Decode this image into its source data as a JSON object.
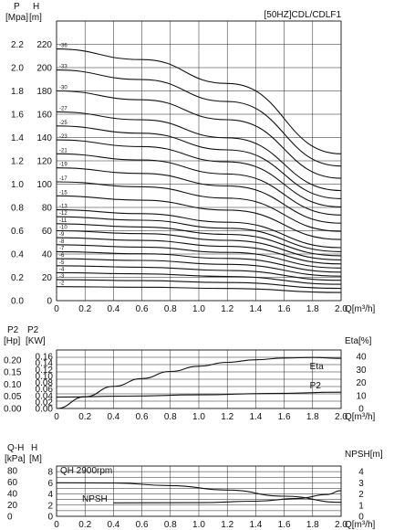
{
  "page_title": "[50HZ]CDL/CDLF1",
  "chart_data": [
    {
      "type": "line",
      "title": "[50HZ]CDL/CDLF1",
      "xlabel": "Q[m³/h]",
      "x_ticks": [
        "0",
        "0.2",
        "0.4",
        "0.6",
        "0.8",
        "1.0",
        "1.2",
        "1.4",
        "1.6",
        "1.8",
        "2.0"
      ],
      "xlim": [
        0,
        2
      ],
      "left_header": [
        "P",
        "[Mpa]"
      ],
      "right_header": [
        "H",
        "[m]"
      ],
      "ylabel": "H [m]",
      "ylim": [
        0,
        240
      ],
      "y_ticks": [
        "0",
        "20",
        "40",
        "60",
        "80",
        "100",
        "120",
        "140",
        "160",
        "180",
        "200",
        "220"
      ],
      "y2_ticks": [
        "0.0",
        "0.2",
        "0.4",
        "0.6",
        "0.8",
        "1.0",
        "1.2",
        "1.4",
        "1.6",
        "1.8",
        "2.0",
        "2.2"
      ],
      "series": [
        {
          "name": "-2",
          "x": [
            0,
            0.6,
            1.2,
            2.0
          ],
          "y": [
            12,
            11.5,
            10.4,
            7
          ]
        },
        {
          "name": "-3",
          "x": [
            0,
            0.6,
            1.2,
            2.0
          ],
          "y": [
            18,
            17.2,
            15.5,
            10.5
          ]
        },
        {
          "name": "-4",
          "x": [
            0,
            0.6,
            1.2,
            2.0
          ],
          "y": [
            24,
            23,
            20.7,
            14
          ]
        },
        {
          "name": "-5",
          "x": [
            0,
            0.6,
            1.2,
            2.0
          ],
          "y": [
            30,
            28.7,
            25.9,
            17.5
          ]
        },
        {
          "name": "-6",
          "x": [
            0,
            0.6,
            1.2,
            2.0
          ],
          "y": [
            36,
            34.5,
            31.1,
            21
          ]
        },
        {
          "name": "-7",
          "x": [
            0,
            0.6,
            1.2,
            2.0
          ],
          "y": [
            42,
            40.2,
            36.2,
            24.5
          ]
        },
        {
          "name": "-8",
          "x": [
            0,
            0.6,
            1.2,
            2.0
          ],
          "y": [
            48,
            46,
            41.4,
            28
          ]
        },
        {
          "name": "-9",
          "x": [
            0,
            0.6,
            1.2,
            2.0
          ],
          "y": [
            54,
            51.7,
            46.6,
            31.5
          ]
        },
        {
          "name": "-10",
          "x": [
            0,
            0.6,
            1.2,
            2.0
          ],
          "y": [
            60,
            57.5,
            51.8,
            35
          ]
        },
        {
          "name": "-11",
          "x": [
            0,
            0.6,
            1.2,
            2.0
          ],
          "y": [
            66,
            63.2,
            56.9,
            38.5
          ]
        },
        {
          "name": "-12",
          "x": [
            0,
            0.6,
            1.2,
            2.0
          ],
          "y": [
            72,
            69,
            62.1,
            42
          ]
        },
        {
          "name": "-13",
          "x": [
            0,
            0.6,
            1.2,
            2.0
          ],
          "y": [
            78,
            74.7,
            67.3,
            45.5
          ]
        },
        {
          "name": "-15",
          "x": [
            0,
            0.6,
            1.2,
            2.0
          ],
          "y": [
            90,
            86.2,
            77.7,
            52.5
          ]
        },
        {
          "name": "-17",
          "x": [
            0,
            0.6,
            1.2,
            2.0
          ],
          "y": [
            102,
            97.7,
            88,
            59.5
          ]
        },
        {
          "name": "-19",
          "x": [
            0,
            0.6,
            1.2,
            2.0
          ],
          "y": [
            114,
            109.2,
            98.4,
            66.5
          ]
        },
        {
          "name": "-21",
          "x": [
            0,
            0.6,
            1.2,
            2.0
          ],
          "y": [
            126,
            120.7,
            108.7,
            73.5
          ]
        },
        {
          "name": "-23",
          "x": [
            0,
            0.6,
            1.2,
            2.0
          ],
          "y": [
            138,
            132.2,
            119.1,
            80.5
          ]
        },
        {
          "name": "-25",
          "x": [
            0,
            0.6,
            1.2,
            2.0
          ],
          "y": [
            150,
            143.7,
            129.4,
            87.5
          ]
        },
        {
          "name": "-27",
          "x": [
            0,
            0.6,
            1.2,
            2.0
          ],
          "y": [
            162,
            155.2,
            139.8,
            94.5
          ]
        },
        {
          "name": "-30",
          "x": [
            0,
            0.6,
            1.2,
            2.0
          ],
          "y": [
            180,
            172.4,
            155.3,
            105
          ]
        },
        {
          "name": "-33",
          "x": [
            0,
            0.6,
            1.2,
            2.0
          ],
          "y": [
            198,
            189.7,
            170.9,
            115.5
          ]
        },
        {
          "name": "-36",
          "x": [
            0,
            0.6,
            1.2,
            2.0
          ],
          "y": [
            216,
            206.9,
            186.4,
            126
          ]
        }
      ]
    },
    {
      "type": "line",
      "xlabel": "Q[m³/h]",
      "x_ticks": [
        "0",
        "0.2",
        "0.4",
        "0.6",
        "0.8",
        "1.0",
        "1.2",
        "1.4",
        "1.6",
        "1.8",
        "2.0"
      ],
      "xlim": [
        0,
        2
      ],
      "left_header": [
        "P2",
        "[Hp]"
      ],
      "mid_header": [
        "P2",
        "[KW]"
      ],
      "right_header": "Eta[%]",
      "ylim": [
        0,
        0.18
      ],
      "y_ticks": [
        "0.00",
        "0.02",
        "0.04",
        "0.06",
        "0.08",
        "0.10",
        "0.12",
        "0.14",
        "0.16"
      ],
      "hp_ticks": [
        "0.00",
        "0.05",
        "0.10",
        "0.15",
        "0.20"
      ],
      "eta_lim": [
        0,
        45
      ],
      "eta_ticks": [
        "0",
        "10",
        "20",
        "30",
        "40"
      ],
      "series": [
        {
          "name": "Eta",
          "axis": "eta",
          "x": [
            0,
            0.2,
            0.4,
            0.6,
            0.8,
            1.0,
            1.2,
            1.4,
            1.6,
            1.8,
            2.0
          ],
          "y": [
            0,
            9,
            17,
            23,
            28.5,
            32.5,
            35.5,
            37.5,
            38.8,
            39.2,
            38.5
          ]
        },
        {
          "name": "P2",
          "axis": "kw",
          "x": [
            0,
            0.5,
            1.0,
            1.5,
            2.0
          ],
          "y": [
            0.035,
            0.038,
            0.042,
            0.046,
            0.05
          ]
        }
      ]
    },
    {
      "type": "line",
      "xlabel": "Q[m³/h]",
      "x_ticks": [
        "0",
        "0.2",
        "0.4",
        "0.6",
        "0.8",
        "1.0",
        "1.2",
        "1.4",
        "1.6",
        "1.8",
        "2.0"
      ],
      "xlim": [
        0,
        2
      ],
      "left_header": [
        "Q-H",
        "[kPa]"
      ],
      "mid_header": [
        "H",
        "[M]"
      ],
      "right_header": "NPSH[m]",
      "ylim": [
        0,
        9
      ],
      "y_ticks": [
        "0",
        "2",
        "4",
        "6",
        "8"
      ],
      "kpa_ticks": [
        "0",
        "20",
        "40",
        "60",
        "80"
      ],
      "npsh_lim": [
        0,
        4.5
      ],
      "npsh_ticks": [
        "0",
        "1",
        "2",
        "3",
        "4"
      ],
      "annotations": [
        "QH 2900rpm",
        "NPSH"
      ],
      "series": [
        {
          "name": "QH 2900rpm",
          "axis": "h",
          "x": [
            0,
            0.4,
            0.8,
            1.2,
            1.6,
            2.0
          ],
          "y": [
            6,
            5.95,
            5.5,
            4.7,
            3.6,
            2.5
          ]
        },
        {
          "name": "NPSH",
          "axis": "npsh",
          "x": [
            0.4,
            1.0,
            1.4,
            1.7,
            1.9,
            2.0
          ],
          "y": [
            1.2,
            1.22,
            1.35,
            1.6,
            1.95,
            2.3
          ]
        }
      ]
    }
  ]
}
